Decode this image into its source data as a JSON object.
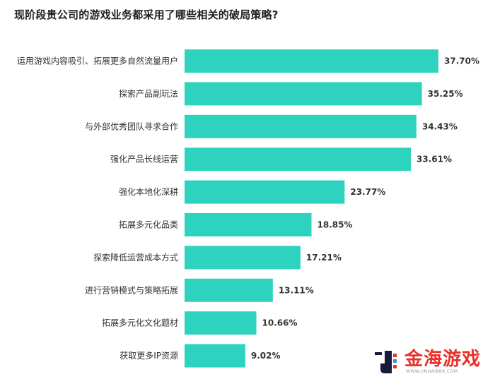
{
  "title": "现阶段贵公司的游戏业务都采用了哪些相关的破局策略?",
  "chart_data": {
    "type": "bar",
    "orientation": "horizontal",
    "title": "现阶段贵公司的游戏业务都采用了哪些相关的破局策略?",
    "categories": [
      "运用游戏内容吸引、拓展更多自然流量用户",
      "探索产品副玩法",
      "与外部优秀团队寻求合作",
      "强化产品长线运营",
      "强化本地化深耕",
      "拓展多元化品类",
      "探索降低运营成本方式",
      "进行营销模式与策略拓展",
      "拓展多元化文化题材",
      "获取更多IP资源"
    ],
    "values": [
      37.7,
      35.25,
      34.43,
      33.61,
      23.77,
      18.85,
      17.21,
      13.11,
      10.66,
      9.02
    ],
    "value_labels": [
      "37.70%",
      "35.25%",
      "34.43%",
      "33.61%",
      "23.77%",
      "18.85%",
      "17.21%",
      "13.11%",
      "10.66%",
      "9.02%"
    ],
    "xlim": [
      0,
      37.7
    ],
    "bar_color": "#2ed3c0",
    "grid": false,
    "legend": "none"
  },
  "watermark": {
    "text": "金海游戏",
    "subtext": "WWW.JINHAI888.COM",
    "color": "#e8312a"
  }
}
